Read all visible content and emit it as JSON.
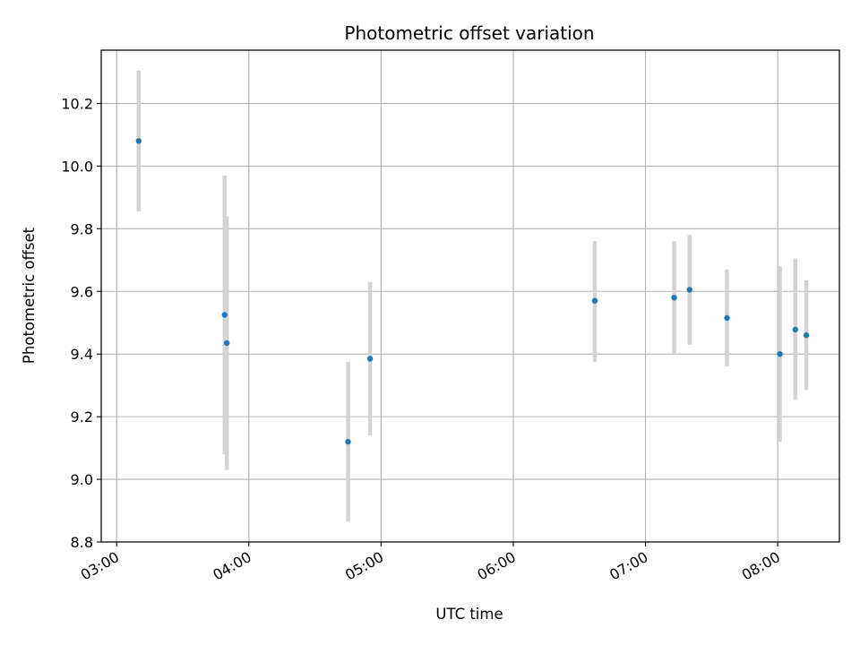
{
  "chart_data": {
    "type": "scatter",
    "title": "Photometric offset variation",
    "xlabel": "UTC time",
    "ylabel": "Photometric offset",
    "x_tick_labels": [
      "03:00",
      "04:00",
      "05:00",
      "06:00",
      "07:00",
      "08:00"
    ],
    "x_ticks": [
      "03:00",
      "04:00",
      "05:00",
      "06:00",
      "07:00",
      "08:00"
    ],
    "xlim": [
      "02:53",
      "08:28"
    ],
    "y_ticks": [
      8.8,
      9.0,
      9.2,
      9.4,
      9.6,
      9.8,
      10.0,
      10.2
    ],
    "ylim": [
      8.8,
      10.37
    ],
    "grid": true,
    "point_color": "#1f77b4",
    "errorbar_color": "#d3d3d3",
    "points": [
      {
        "x": "03:10",
        "y": 10.08,
        "ylow": 9.855,
        "yhigh": 10.305
      },
      {
        "x": "03:49",
        "y": 9.525,
        "ylow": 9.08,
        "yhigh": 9.97
      },
      {
        "x": "03:50",
        "y": 9.435,
        "ylow": 9.03,
        "yhigh": 9.84
      },
      {
        "x": "04:45",
        "y": 9.12,
        "ylow": 8.865,
        "yhigh": 9.375
      },
      {
        "x": "04:55",
        "y": 9.385,
        "ylow": 9.14,
        "yhigh": 9.63
      },
      {
        "x": "06:37",
        "y": 9.57,
        "ylow": 9.375,
        "yhigh": 9.76
      },
      {
        "x": "07:13",
        "y": 9.58,
        "ylow": 9.4,
        "yhigh": 9.76
      },
      {
        "x": "07:20",
        "y": 9.605,
        "ylow": 9.43,
        "yhigh": 9.78
      },
      {
        "x": "07:37",
        "y": 9.515,
        "ylow": 9.36,
        "yhigh": 9.67
      },
      {
        "x": "08:01",
        "y": 9.4,
        "ylow": 9.12,
        "yhigh": 9.68
      },
      {
        "x": "08:08",
        "y": 9.478,
        "ylow": 9.255,
        "yhigh": 9.705
      },
      {
        "x": "08:13",
        "y": 9.46,
        "ylow": 9.285,
        "yhigh": 9.635
      }
    ]
  }
}
